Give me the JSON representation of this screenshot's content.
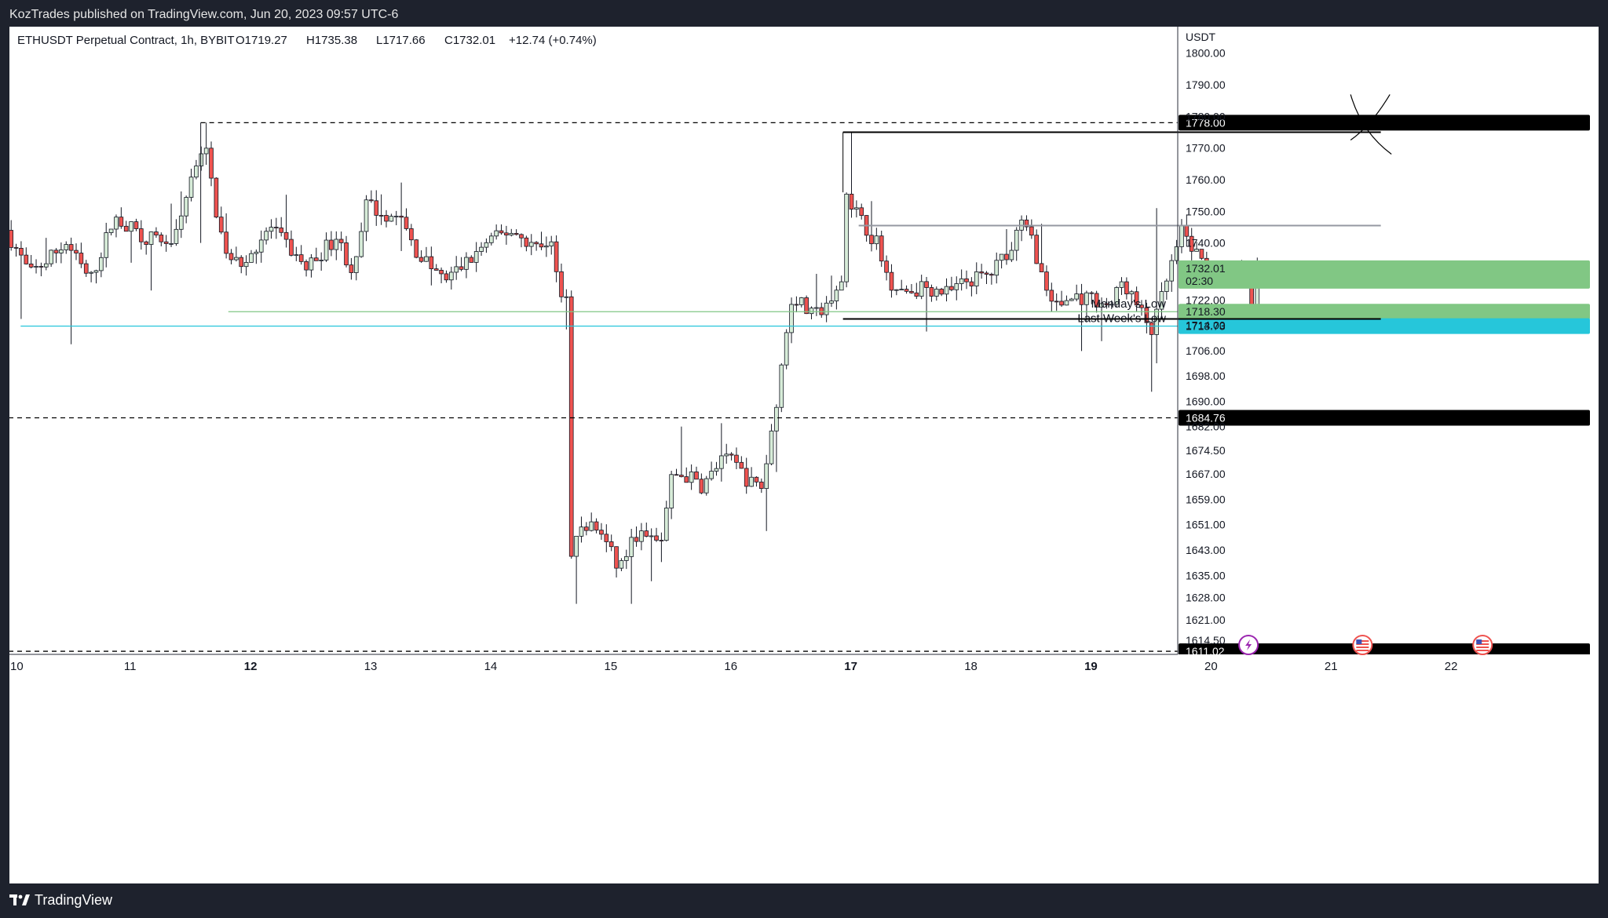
{
  "publisher": "KozTrades published on TradingView.com, Jun 20, 2023 09:57 UTC-6",
  "brand": "TradingView",
  "colors": {
    "up": "#4caf50",
    "down": "#ef5350",
    "monday_low": "#81c784",
    "week_low": "#26c6da",
    "countdown_bg": "#81c784"
  },
  "chart_data": {
    "type": "candlestick",
    "title": "ETHUSDT Perpetual Contract, 1h, BYBIT",
    "ohlc_header": {
      "open": "O1719.27",
      "high": "H1735.38",
      "low": "L1717.66",
      "close": "C1732.01",
      "change": "+12.74 (+0.74%)"
    },
    "currency": "USDT",
    "ylim": [
      1608,
      1806
    ],
    "xlim": [
      10,
      22.7
    ],
    "y_ticks": [
      "1800.00",
      "1790.00",
      "1780.00",
      "1770.00",
      "1760.00",
      "1750.00",
      "1740.00",
      "1732.00",
      "1722.00",
      "1714.00",
      "1706.00",
      "1698.00",
      "1690.00",
      "1682.00",
      "1674.50",
      "1667.00",
      "1659.00",
      "1651.00",
      "1643.00",
      "1635.00",
      "1628.00",
      "1621.00",
      "1614.50"
    ],
    "x_ticks": [
      {
        "label": "10",
        "x": 10,
        "bold": false
      },
      {
        "label": "11",
        "x": 11,
        "bold": false
      },
      {
        "label": "12",
        "x": 12,
        "bold": true
      },
      {
        "label": "13",
        "x": 13,
        "bold": false
      },
      {
        "label": "14",
        "x": 14,
        "bold": false
      },
      {
        "label": "15",
        "x": 15,
        "bold": false
      },
      {
        "label": "16",
        "x": 16,
        "bold": false
      },
      {
        "label": "17",
        "x": 17,
        "bold": true
      },
      {
        "label": "18",
        "x": 18,
        "bold": false
      },
      {
        "label": "19",
        "x": 19,
        "bold": true
      },
      {
        "label": "20",
        "x": 20,
        "bold": false
      },
      {
        "label": "21",
        "x": 21,
        "bold": false
      },
      {
        "label": "22",
        "x": 22,
        "bold": false
      }
    ],
    "last_price": {
      "value": 1732.01,
      "label": "1732.01",
      "countdown": "02:30"
    },
    "levels": [
      {
        "name": "level-1778",
        "value": 1778.0,
        "label": "1778.00",
        "style": "dashed",
        "color": "#000000",
        "from_x": 11.6,
        "badge_color": "#000000"
      },
      {
        "name": "level-1684",
        "value": 1684.76,
        "label": "1684.76",
        "style": "dashed",
        "color": "#000000",
        "from_x": 10,
        "badge_color": "#000000"
      },
      {
        "name": "level-1611",
        "value": 1611.02,
        "label": "1611.02",
        "style": "dashed",
        "color": "#000000",
        "from_x": 10,
        "badge_color": "#000000"
      },
      {
        "name": "monday-low",
        "value": 1718.3,
        "label": "1718.30",
        "text": "Monday's Low",
        "style": "solid",
        "color": "#81c784",
        "from_x": 11.83,
        "badge_color": "#81c784"
      },
      {
        "name": "last-week-low",
        "value": 1713.73,
        "label": "1713.73",
        "text": "Last Week's Low",
        "style": "solid",
        "color": "#26c6da",
        "from_x": 10.1,
        "badge_color": "#26c6da"
      }
    ],
    "range_box": {
      "top": 1775,
      "bottom": 1716,
      "mid": 1745.5,
      "start_x": 16.95,
      "end_x": 21.43
    },
    "x_mark": {
      "x": 21.27,
      "y": 1775
    },
    "events": [
      {
        "x": 20.38,
        "type": "flash"
      },
      {
        "x": 21.33,
        "type": "us-flag"
      },
      {
        "x": 22.33,
        "type": "us-flag"
      }
    ],
    "anchors": [
      [
        10.0,
        1744
      ],
      [
        10.2,
        1730
      ],
      [
        10.5,
        1740
      ],
      [
        10.7,
        1728
      ],
      [
        10.9,
        1748
      ],
      [
        11.15,
        1742
      ],
      [
        11.4,
        1740
      ],
      [
        11.55,
        1762
      ],
      [
        11.65,
        1772
      ],
      [
        11.75,
        1750
      ],
      [
        11.85,
        1733
      ],
      [
        12.0,
        1735
      ],
      [
        12.2,
        1745
      ],
      [
        12.5,
        1732
      ],
      [
        12.75,
        1742
      ],
      [
        12.9,
        1730
      ],
      [
        13.0,
        1752
      ],
      [
        13.3,
        1747
      ],
      [
        13.4,
        1738
      ],
      [
        13.65,
        1728
      ],
      [
        13.9,
        1736
      ],
      [
        14.0,
        1740
      ],
      [
        14.2,
        1744
      ],
      [
        14.45,
        1738
      ],
      [
        14.55,
        1742
      ],
      [
        14.6,
        1724
      ],
      [
        14.63,
        1642
      ],
      [
        14.7,
        1646
      ],
      [
        14.85,
        1651
      ],
      [
        14.95,
        1649
      ],
      [
        15.1,
        1637
      ],
      [
        15.25,
        1648
      ],
      [
        15.45,
        1645
      ],
      [
        15.55,
        1667
      ],
      [
        15.7,
        1666
      ],
      [
        15.8,
        1663
      ],
      [
        15.95,
        1671
      ],
      [
        16.05,
        1671
      ],
      [
        16.2,
        1664
      ],
      [
        16.3,
        1663
      ],
      [
        16.4,
        1686
      ],
      [
        16.5,
        1712
      ],
      [
        16.55,
        1724
      ],
      [
        16.7,
        1717
      ],
      [
        16.8,
        1718
      ],
      [
        16.95,
        1725
      ],
      [
        17.0,
        1756
      ],
      [
        17.1,
        1748
      ],
      [
        17.25,
        1740
      ],
      [
        17.35,
        1728
      ],
      [
        17.5,
        1725
      ],
      [
        17.65,
        1726
      ],
      [
        17.85,
        1724
      ],
      [
        18.0,
        1728
      ],
      [
        18.2,
        1730
      ],
      [
        18.35,
        1738
      ],
      [
        18.45,
        1746
      ],
      [
        18.55,
        1741
      ],
      [
        18.65,
        1726
      ],
      [
        18.75,
        1720
      ],
      [
        18.9,
        1723
      ],
      [
        19.1,
        1722
      ],
      [
        19.2,
        1720
      ],
      [
        19.3,
        1728
      ],
      [
        19.45,
        1718
      ],
      [
        19.55,
        1712
      ],
      [
        19.65,
        1726
      ],
      [
        19.8,
        1744
      ],
      [
        19.9,
        1737
      ],
      [
        20.05,
        1731
      ],
      [
        20.2,
        1728
      ],
      [
        20.3,
        1732
      ],
      [
        20.35,
        1722
      ],
      [
        20.38,
        1719.27
      ]
    ],
    "last_candle": {
      "o": 1719.27,
      "h": 1735.38,
      "l": 1717.66,
      "c": 1732.01
    }
  }
}
